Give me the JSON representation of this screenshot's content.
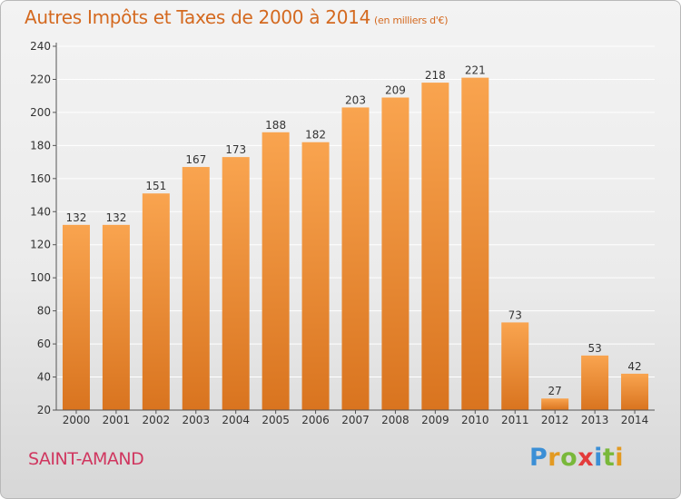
{
  "title": "Autres Impôts et Taxes de 2000 à 2014",
  "unit": "(en milliers d'€)",
  "place": "SAINT-AMAND",
  "logo": {
    "text": "Proxiti",
    "colors": [
      "#3b8fd6",
      "#e39a22",
      "#79b83a",
      "#e33b3b",
      "#3b8fd6",
      "#79b83a",
      "#e39a22"
    ]
  },
  "colors": {
    "bar_light": "#f9a44f",
    "bar_dark": "#d9741f",
    "axis": "#555555",
    "grid": "#ffffff",
    "title": "#d4691f",
    "place": "#d0365f"
  },
  "chart_data": {
    "type": "bar",
    "title": "Autres Impôts et Taxes de 2000 à 2014",
    "subtitle": "(en milliers d'€)",
    "xlabel": "",
    "ylabel": "",
    "categories": [
      "2000",
      "2001",
      "2002",
      "2003",
      "2004",
      "2005",
      "2006",
      "2007",
      "2008",
      "2009",
      "2010",
      "2011",
      "2012",
      "2013",
      "2014"
    ],
    "values": [
      132,
      132,
      151,
      167,
      173,
      188,
      182,
      203,
      209,
      218,
      221,
      73,
      27,
      53,
      42
    ],
    "ylim": [
      20,
      240
    ],
    "yticks": [
      20,
      40,
      60,
      80,
      100,
      120,
      140,
      160,
      180,
      200,
      220,
      240
    ],
    "grid": true,
    "data_labels": true
  }
}
